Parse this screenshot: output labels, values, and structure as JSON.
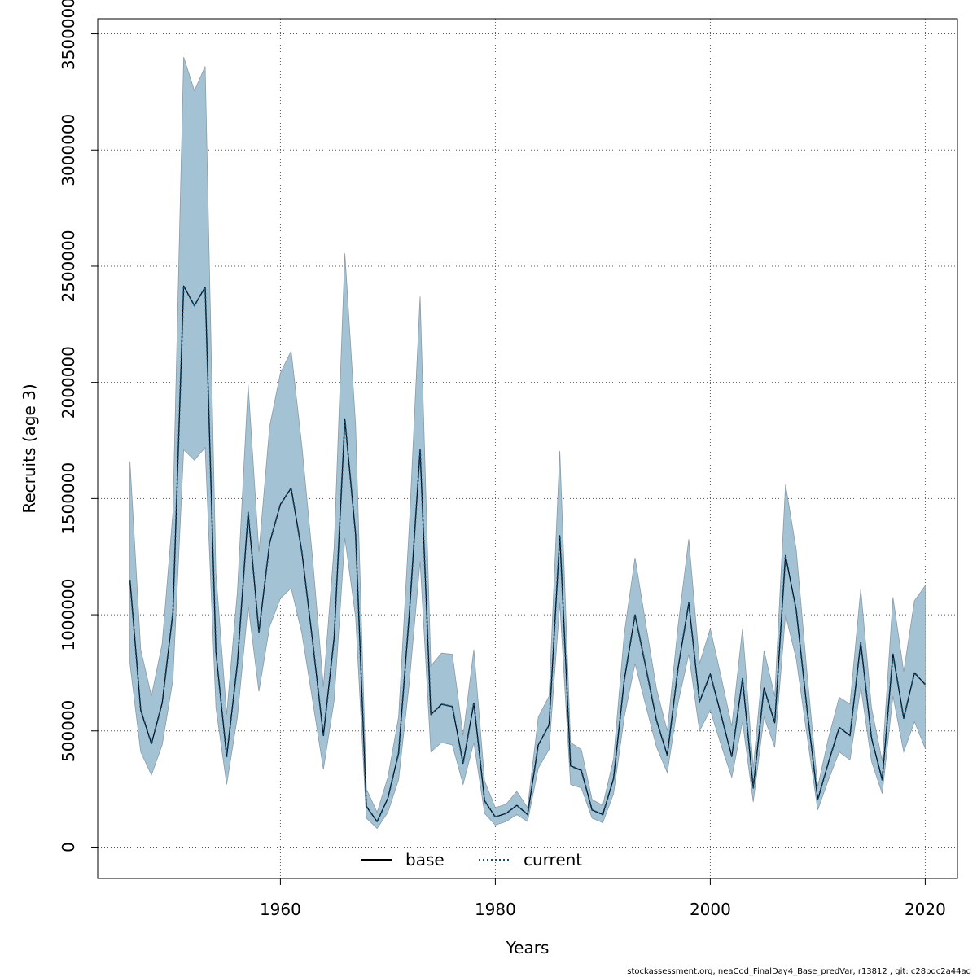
{
  "chart_data": {
    "type": "line",
    "xlabel": "Years",
    "ylabel": "Recruits (age 3)",
    "xlim": [
      1943,
      2023
    ],
    "ylim": [
      -135000,
      3565000
    ],
    "x_ticks": [
      1960,
      1980,
      2000,
      2020
    ],
    "y_ticks": [
      0,
      500000,
      1000000,
      1500000,
      2000000,
      2500000,
      3000000,
      3500000
    ],
    "x_tick_labels": [
      "1960",
      "1980",
      "2000",
      "2020"
    ],
    "y_tick_labels": [
      "0",
      "500000",
      "1000000",
      "1500000",
      "2000000",
      "2500000",
      "3000000",
      "3500000"
    ],
    "grid": true,
    "legend_position": "bottom-center",
    "band_color": "#a3c3d5",
    "line_color": "#000000",
    "current_line_color": "#0a4f7a",
    "x": [
      1946,
      1947,
      1948,
      1949,
      1950,
      1951,
      1952,
      1953,
      1954,
      1955,
      1956,
      1957,
      1958,
      1959,
      1960,
      1961,
      1962,
      1963,
      1964,
      1965,
      1966,
      1967,
      1968,
      1969,
      1970,
      1971,
      1972,
      1973,
      1974,
      1975,
      1976,
      1977,
      1978,
      1979,
      1980,
      1981,
      1982,
      1983,
      1984,
      1985,
      1986,
      1987,
      1988,
      1989,
      1990,
      1991,
      1992,
      1993,
      1994,
      1995,
      1996,
      1997,
      1998,
      1999,
      2000,
      2001,
      2002,
      2003,
      2004,
      2005,
      2006,
      2007,
      2008,
      2009,
      2010,
      2011,
      2012,
      2013,
      2014,
      2015,
      2016,
      2017,
      2018,
      2019,
      2020
    ],
    "lower": [
      790000,
      410000,
      310000,
      440000,
      720000,
      1710000,
      1665000,
      1720000,
      600000,
      270000,
      560000,
      1040000,
      670000,
      950000,
      1070000,
      1115000,
      920000,
      630000,
      335000,
      630000,
      1330000,
      990000,
      125000,
      80000,
      150000,
      290000,
      710000,
      1230000,
      410000,
      450000,
      440000,
      270000,
      450000,
      145000,
      95000,
      110000,
      140000,
      110000,
      340000,
      420000,
      1050000,
      270000,
      255000,
      125000,
      105000,
      230000,
      560000,
      790000,
      610000,
      430000,
      320000,
      620000,
      830000,
      500000,
      590000,
      440000,
      300000,
      540000,
      195000,
      560000,
      430000,
      1000000,
      810000,
      480000,
      160000,
      290000,
      410000,
      375000,
      690000,
      370000,
      230000,
      650000,
      410000,
      540000,
      425000
    ],
    "upper": [
      1660000,
      850000,
      650000,
      875000,
      1440000,
      3400000,
      3255000,
      3360000,
      1180000,
      570000,
      1100000,
      1990000,
      1270000,
      1810000,
      2040000,
      2135000,
      1725000,
      1240000,
      690000,
      1290000,
      2555000,
      1815000,
      250000,
      150000,
      300000,
      560000,
      1390000,
      2370000,
      780000,
      835000,
      830000,
      480000,
      850000,
      285000,
      170000,
      185000,
      240000,
      170000,
      560000,
      650000,
      1705000,
      450000,
      420000,
      205000,
      180000,
      380000,
      920000,
      1245000,
      960000,
      680000,
      500000,
      950000,
      1325000,
      790000,
      940000,
      735000,
      520000,
      940000,
      340000,
      845000,
      650000,
      1560000,
      1280000,
      750000,
      260000,
      470000,
      645000,
      615000,
      1110000,
      600000,
      370000,
      1075000,
      755000,
      1060000,
      1125000
    ],
    "series": [
      {
        "name": "base",
        "style": "solid",
        "values": [
          1150000,
          590000,
          445000,
          620000,
          1010000,
          2415000,
          2330000,
          2410000,
          840000,
          390000,
          790000,
          1440000,
          925000,
          1310000,
          1475000,
          1545000,
          1270000,
          885000,
          480000,
          900000,
          1840000,
          1345000,
          175000,
          110000,
          210000,
          405000,
          1005000,
          1710000,
          570000,
          615000,
          605000,
          360000,
          620000,
          200000,
          130000,
          145000,
          180000,
          140000,
          440000,
          525000,
          1340000,
          350000,
          330000,
          160000,
          140000,
          295000,
          720000,
          1000000,
          775000,
          545000,
          395000,
          770000,
          1050000,
          625000,
          745000,
          570000,
          390000,
          725000,
          255000,
          685000,
          535000,
          1255000,
          1020000,
          595000,
          205000,
          365000,
          515000,
          480000,
          880000,
          470000,
          290000,
          830000,
          555000,
          750000,
          700000
        ]
      },
      {
        "name": "current",
        "style": "dotted",
        "values": [
          1150000,
          590000,
          445000,
          620000,
          1010000,
          2415000,
          2330000,
          2410000,
          840000,
          390000,
          790000,
          1440000,
          925000,
          1310000,
          1475000,
          1545000,
          1270000,
          885000,
          480000,
          900000,
          1840000,
          1345000,
          175000,
          110000,
          210000,
          405000,
          1005000,
          1710000,
          570000,
          615000,
          605000,
          360000,
          620000,
          200000,
          130000,
          145000,
          180000,
          140000,
          440000,
          525000,
          1340000,
          350000,
          330000,
          160000,
          140000,
          295000,
          720000,
          1000000,
          775000,
          545000,
          395000,
          770000,
          1050000,
          625000,
          745000,
          570000,
          390000,
          725000,
          255000,
          685000,
          535000,
          1255000,
          1020000,
          595000,
          205000,
          365000,
          515000,
          480000,
          880000,
          470000,
          290000,
          830000,
          555000,
          750000,
          700000
        ]
      }
    ]
  },
  "legend": {
    "base_label": "base",
    "current_label": "current"
  },
  "footer": {
    "text": "stockassessment.org, neaCod_FinalDay4_Base_predVar, r13812 , git: c28bdc2a44ad"
  }
}
